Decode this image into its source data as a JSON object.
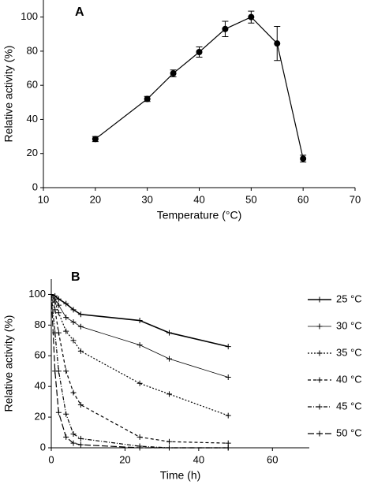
{
  "chart_data": [
    {
      "type": "line",
      "annotation": "A",
      "xlabel": "Temperature (°C)",
      "ylabel": "Relative activity (%)",
      "x": [
        20,
        30,
        35,
        40,
        45,
        50,
        55,
        60
      ],
      "series": [
        {
          "color": "#000000",
          "values": [
            28.5,
            52,
            67,
            79.5,
            93,
            100,
            84.5,
            17
          ],
          "errors": [
            1.5,
            1.5,
            2,
            3,
            4.5,
            3.5,
            10,
            2
          ]
        }
      ],
      "xlim": [
        10,
        70
      ],
      "xticks": [
        10,
        20,
        30,
        40,
        50,
        60,
        70
      ],
      "ylim": [
        0,
        110
      ],
      "yticks": [
        0,
        20,
        40,
        60,
        80,
        100
      ],
      "marker": "circle"
    },
    {
      "type": "line",
      "annotation": "B",
      "xlabel": "Time (h)",
      "ylabel": "Relative activity (%)",
      "x": [
        0,
        1,
        2,
        4,
        6,
        8,
        24,
        32,
        48
      ],
      "series": [
        {
          "name": "25 °C",
          "color": "#000000",
          "dash": "",
          "width": 1.6,
          "values": [
            100,
            99,
            97,
            94,
            90,
            87,
            83,
            75,
            66
          ]
        },
        {
          "name": "30 °C",
          "color": "#000000",
          "dash": "",
          "width": 0.8,
          "values": [
            100,
            97,
            93,
            85,
            82,
            79,
            67,
            58,
            46
          ]
        },
        {
          "name": "35 °C",
          "color": "#000000",
          "dash": "2 2",
          "width": 1.2,
          "values": [
            100,
            95,
            88,
            76,
            70,
            63,
            42,
            35,
            21
          ]
        },
        {
          "name": "40 °C",
          "color": "#000000",
          "dash": "4 3",
          "width": 1.2,
          "values": [
            100,
            90,
            75,
            50,
            36,
            28,
            7,
            4,
            3
          ]
        },
        {
          "name": "45 °C",
          "color": "#000000",
          "dash": "5 2 1 2",
          "width": 1.2,
          "values": [
            100,
            75,
            50,
            22,
            9,
            6,
            1,
            0,
            0
          ]
        },
        {
          "name": "50 °C",
          "color": "#000000",
          "dash": "8 3",
          "width": 1.2,
          "values": [
            100,
            50,
            23,
            7,
            3,
            2,
            0,
            0,
            0
          ]
        }
      ],
      "xlim": [
        0,
        70
      ],
      "xticks": [
        0,
        20,
        40,
        60
      ],
      "ylim": [
        0,
        110
      ],
      "yticks": [
        0,
        20,
        40,
        60,
        80,
        100
      ],
      "marker": "plus",
      "legend": "right"
    }
  ]
}
